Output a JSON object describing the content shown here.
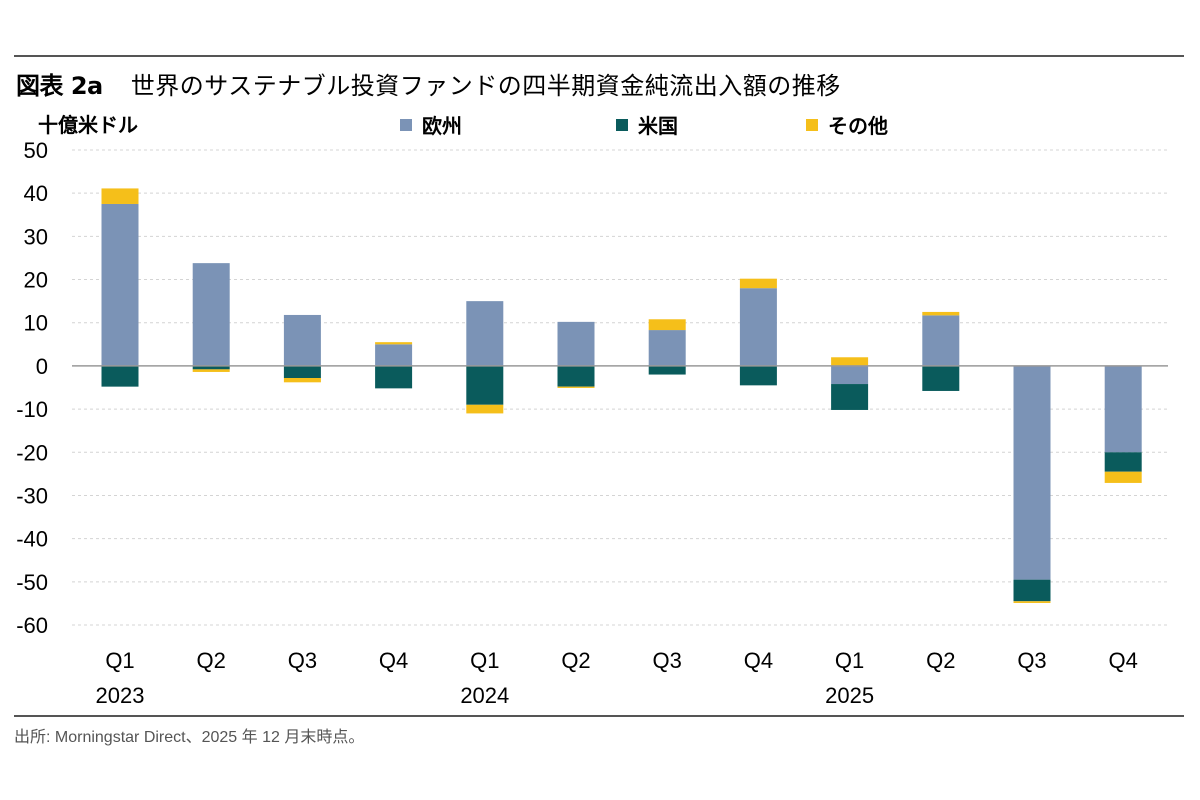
{
  "figure_label": "図表 2a",
  "title_text": "世界のサステナブル投資ファンドの四半期資金純流出入額の推移",
  "source_note": "出所: Morningstar Direct、2025 年 12 月末時点。",
  "colors": {
    "europe": "#7b93b6",
    "us": "#0a5b5c",
    "other": "#f5bf1a",
    "grid": "#d4d4d4",
    "zero": "#999999"
  },
  "chart_data": {
    "type": "bar",
    "stacked": true,
    "title": "世界のサステナブル投資ファンドの四半期資金純流出入額の推移",
    "ylabel": "十億米ドル",
    "xlabel": "",
    "ylim": [
      -60,
      50
    ],
    "yticks": [
      50,
      40,
      30,
      20,
      10,
      0,
      -10,
      -20,
      -30,
      -40,
      -50,
      -60
    ],
    "grid": true,
    "legend_position": "top",
    "categories": [
      "Q1",
      "Q2",
      "Q3",
      "Q4",
      "Q1",
      "Q2",
      "Q3",
      "Q4",
      "Q1",
      "Q2",
      "Q3",
      "Q4"
    ],
    "year_labels": [
      {
        "index": 0,
        "label": "2023"
      },
      {
        "index": 4,
        "label": "2024"
      },
      {
        "index": 8,
        "label": "2025"
      }
    ],
    "series": [
      {
        "name": "欧州",
        "color": "#7b93b6",
        "values": [
          37.5,
          23.8,
          11.8,
          5.0,
          15.0,
          10.2,
          8.3,
          18.0,
          -4.2,
          11.7,
          -49.5,
          -20.0
        ]
      },
      {
        "name": "米国",
        "color": "#0a5b5c",
        "values": [
          -4.8,
          -0.8,
          -2.8,
          -5.2,
          -9.0,
          -4.8,
          -2.0,
          -4.5,
          -6.0,
          -5.8,
          -5.0,
          -4.5
        ]
      },
      {
        "name": "その他",
        "color": "#f5bf1a",
        "values": [
          3.6,
          -0.6,
          -1.0,
          0.5,
          -2.0,
          -0.3,
          2.5,
          2.2,
          2.0,
          0.8,
          -0.4,
          -2.6
        ]
      }
    ]
  }
}
